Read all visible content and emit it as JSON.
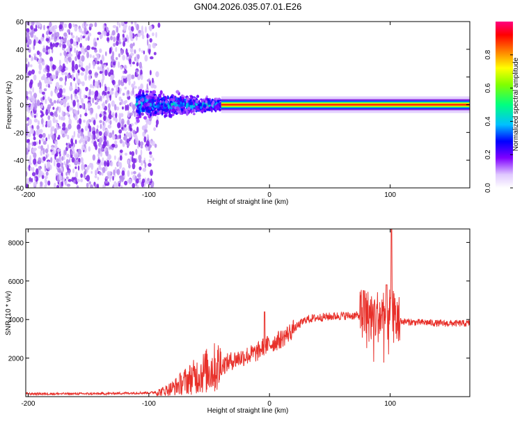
{
  "chart_data": [
    {
      "type": "heatmap",
      "title": "GN04.2026.035.07.01.E26",
      "xlabel": "Height of straight line (km)",
      "ylabel": "Frequency (Hz)",
      "xlim": [
        -202,
        166
      ],
      "ylim": [
        -60,
        60
      ],
      "xticks": [
        -200,
        -100,
        0,
        100
      ],
      "yticks": [
        -60,
        -40,
        -20,
        0,
        20,
        40,
        60
      ],
      "colorbar": {
        "label": "Normalized spectral amplitude",
        "range": [
          0,
          1
        ],
        "ticks": [
          0.0,
          0.2,
          0.4,
          0.6,
          0.8
        ]
      },
      "regions": [
        {
          "name": "noise",
          "x": [
            -200,
            -90
          ],
          "freq_range": [
            -60,
            60
          ],
          "amplitude": 0.05
        },
        {
          "name": "transition",
          "x": [
            -110,
            -40
          ],
          "freq_range": [
            -15,
            15
          ],
          "amplitude": 0.25
        },
        {
          "name": "signal",
          "x": [
            -40,
            166
          ],
          "center_freq": 0,
          "bandwidth": 3,
          "amplitude": 0.95
        }
      ]
    },
    {
      "type": "line",
      "xlabel": "Height of straight line (km)",
      "ylabel": "SNR (10 * v/v)",
      "xlim": [
        -202,
        166
      ],
      "ylim": [
        0,
        8700
      ],
      "xticks": [
        -200,
        -100,
        0,
        100
      ],
      "yticks": [
        2000,
        4000,
        6000,
        8000
      ],
      "color": "#e8302a",
      "series": [
        {
          "name": "SNR",
          "x": [
            -202,
            -180,
            -160,
            -140,
            -120,
            -100,
            -90,
            -80,
            -70,
            -60,
            -50,
            -40,
            -30,
            -20,
            -10,
            -5,
            0,
            10,
            20,
            30,
            40,
            50,
            60,
            70,
            80,
            90,
            95,
            100,
            105,
            110,
            120,
            130,
            140,
            150,
            166
          ],
          "values": [
            150,
            150,
            150,
            150,
            180,
            200,
            250,
            450,
            800,
            1100,
            1400,
            1600,
            1900,
            2100,
            2300,
            2600,
            2700,
            3000,
            3500,
            4000,
            4100,
            4150,
            4200,
            4200,
            4200,
            4200,
            4100,
            4300,
            4000,
            3900,
            3850,
            3850,
            3800,
            3800,
            3800
          ],
          "spikes": [
            {
              "x": 101,
              "value": 8700
            },
            {
              "x": 97,
              "value": 5800
            },
            {
              "x": 78,
              "value": 5500
            },
            {
              "x": -4,
              "value": 4400
            }
          ]
        }
      ]
    }
  ]
}
